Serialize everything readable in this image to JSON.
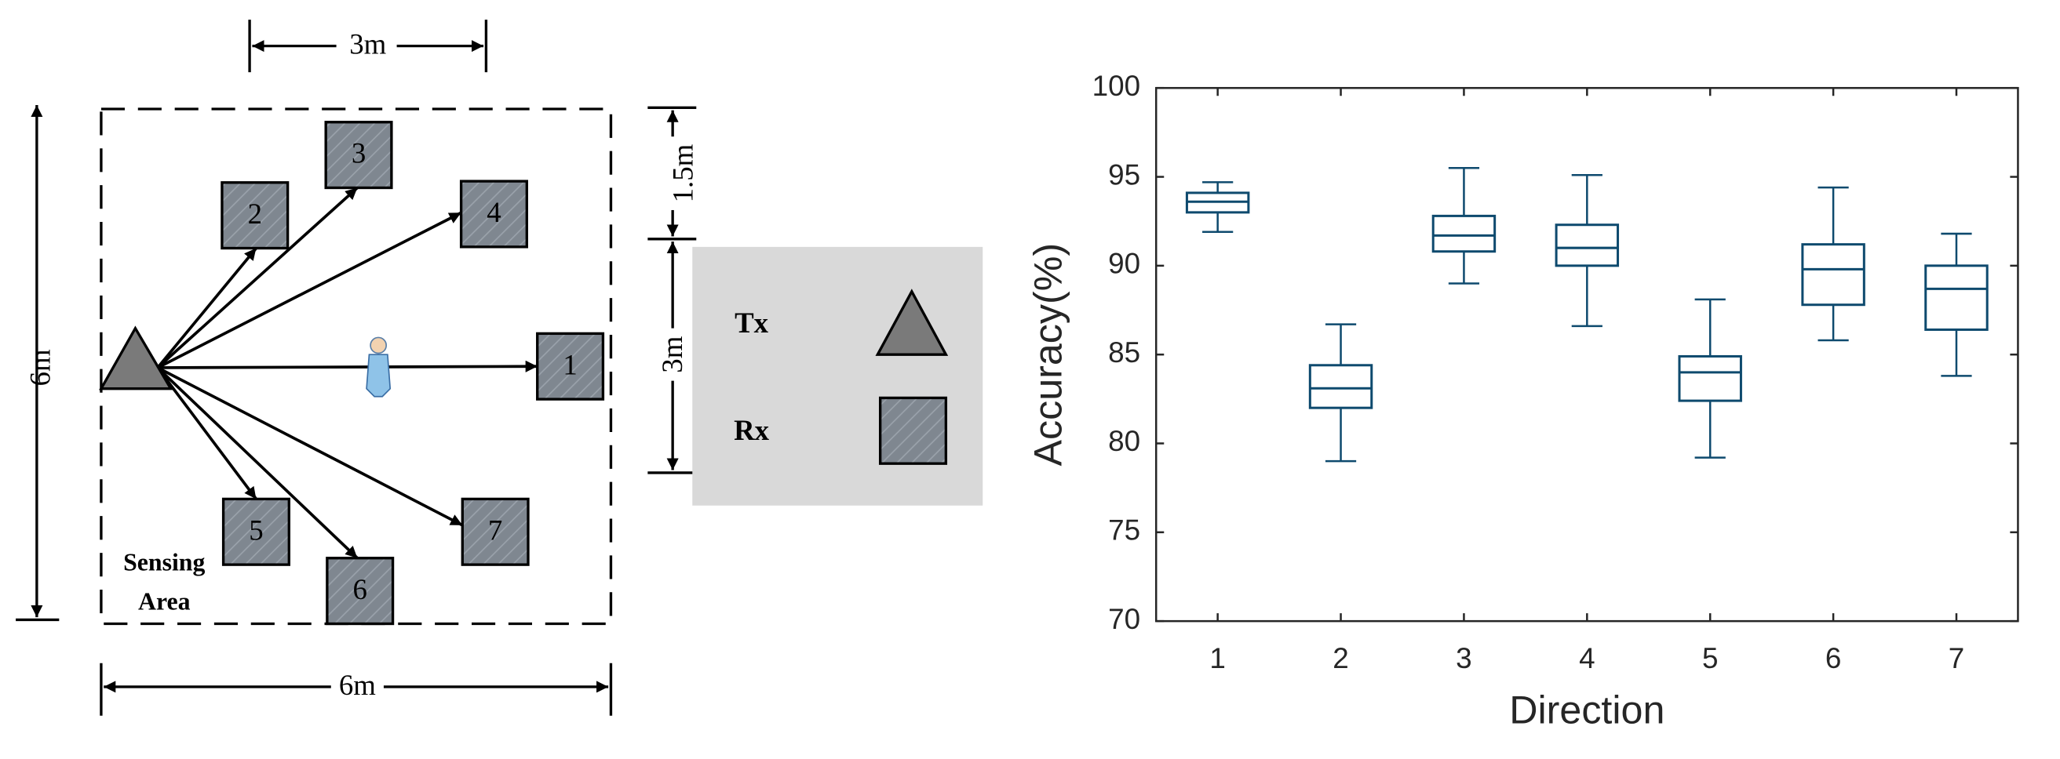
{
  "diagram": {
    "dimensions": {
      "top": "3m",
      "left": "6m",
      "bottom": "6m",
      "right_upper": "1.5m",
      "right_lower": "3m"
    },
    "receivers": [
      "1",
      "2",
      "3",
      "4",
      "5",
      "6",
      "7"
    ],
    "area_label": [
      "Sensing",
      "Area"
    ],
    "legend": {
      "tx": "Tx",
      "rx": "Rx"
    }
  },
  "chart_data": {
    "type": "box",
    "x_label": "Direction",
    "y_label": "Accuracy(%)",
    "categories": [
      "1",
      "2",
      "3",
      "4",
      "5",
      "6",
      "7"
    ],
    "whisker_low": [
      91.9,
      79.0,
      89.0,
      86.6,
      79.2,
      85.8,
      83.8
    ],
    "q1": [
      93.0,
      82.0,
      90.8,
      90.0,
      82.4,
      87.8,
      86.4
    ],
    "median": [
      93.6,
      83.1,
      91.7,
      91.0,
      84.0,
      89.8,
      88.7
    ],
    "q3": [
      94.1,
      84.4,
      92.8,
      92.3,
      84.9,
      91.2,
      90.0
    ],
    "whisker_high": [
      94.7,
      86.7,
      95.5,
      95.1,
      88.1,
      94.4,
      91.8
    ],
    "color": "#0e4a6e",
    "ylim": [
      70,
      100
    ],
    "yticks": [
      70,
      75,
      80,
      85,
      90,
      95,
      100
    ]
  }
}
